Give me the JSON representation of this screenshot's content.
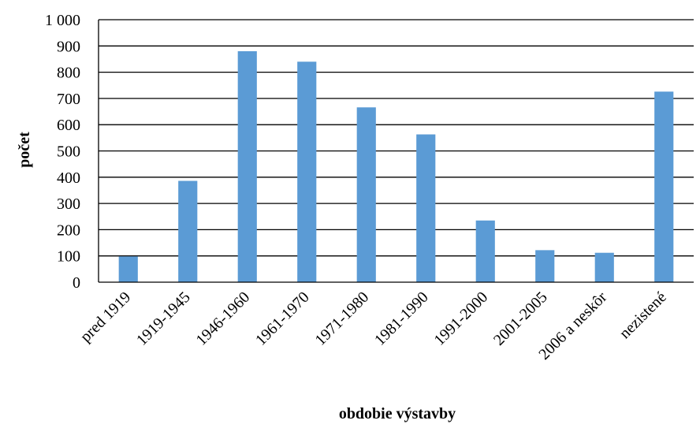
{
  "chart_data": {
    "type": "bar",
    "categories": [
      "pred 1919",
      "1919-1945",
      "1946-1960",
      "1961-1970",
      "1971-1980",
      "1981-1990",
      "1991-2000",
      "2001-2005",
      "2006 a neskôr",
      "nezistené"
    ],
    "values": [
      98,
      386,
      880,
      840,
      666,
      563,
      235,
      122,
      112,
      726
    ],
    "title": "",
    "xlabel": "obdobie výstavby",
    "ylabel": "počet",
    "ylim": [
      0,
      1000
    ],
    "yticks": [
      0,
      100,
      200,
      300,
      400,
      500,
      600,
      700,
      800,
      900,
      1000
    ],
    "ytick_labels": [
      "0",
      "100",
      "200",
      "300",
      "400",
      "500",
      "600",
      "700",
      "800",
      "900",
      "1 000"
    ],
    "grid": true,
    "legend": "none",
    "bar_color": "#5B9BD5",
    "grid_color": "#000000"
  }
}
